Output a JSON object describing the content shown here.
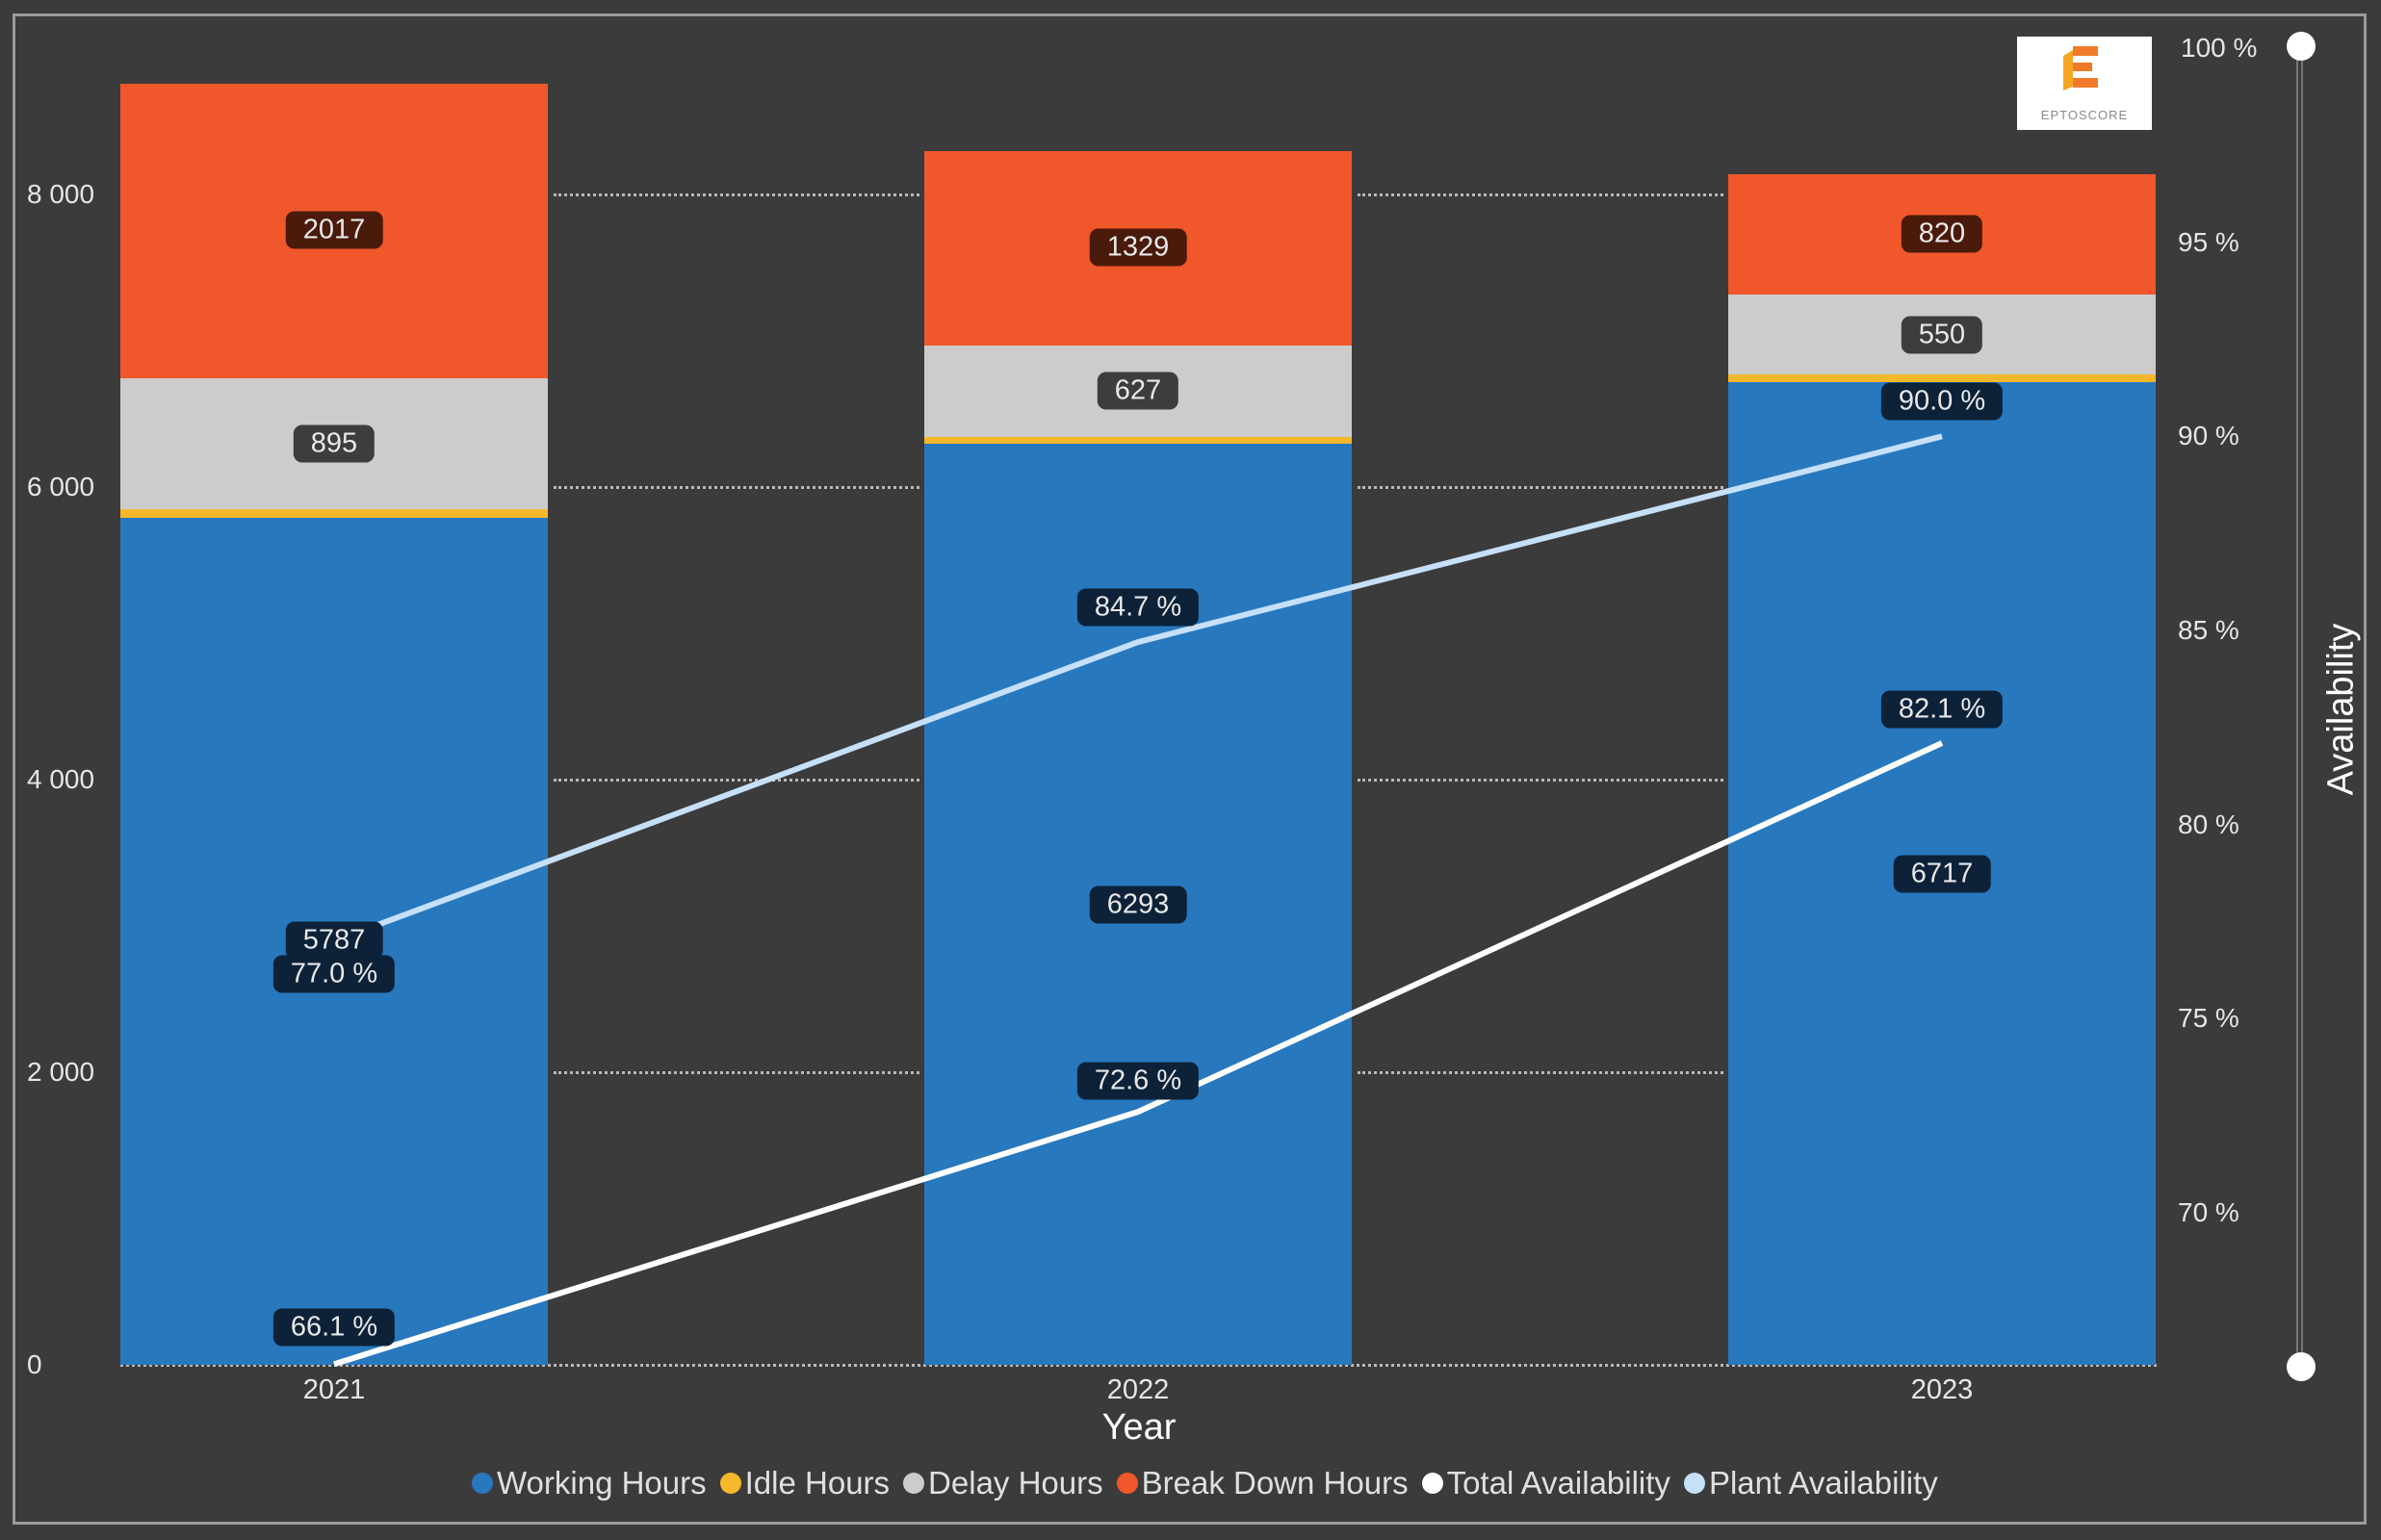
{
  "chart_data": {
    "type": "bar",
    "subtype": "stacked column with line (dual axis)",
    "title": "",
    "xlabel": "Year",
    "ylabel": "",
    "y2label": "Availability",
    "categories": [
      "2021",
      "2022",
      "2023"
    ],
    "ylim": [
      0,
      8800
    ],
    "y_ticks": [
      "0",
      "2 000",
      "4 000",
      "6 000",
      "8 000"
    ],
    "y2lim": [
      66.1,
      100
    ],
    "y2_ticks": [
      "70 %",
      "75 %",
      "80 %",
      "85 %",
      "90 %",
      "95 %",
      "100 %"
    ],
    "grid": true,
    "legend_position": "bottom",
    "series": [
      {
        "name": "Working Hours",
        "type": "bar",
        "color": "#2878be",
        "values": [
          5787,
          6293,
          6717
        ],
        "labels": [
          "5787",
          "6293",
          "6717"
        ]
      },
      {
        "name": "Idle Hours",
        "type": "bar",
        "color": "#f5b82a",
        "values": [
          60,
          50,
          50
        ],
        "labels": [
          "",
          "",
          ""
        ]
      },
      {
        "name": "Delay Hours",
        "type": "bar",
        "color": "#cccccc",
        "values": [
          895,
          627,
          550
        ],
        "labels": [
          "895",
          "627",
          "550"
        ]
      },
      {
        "name": "Break Down Hours",
        "type": "bar",
        "color": "#f0572a",
        "values": [
          2017,
          1329,
          820
        ],
        "labels": [
          "2017",
          "1329",
          "820"
        ]
      },
      {
        "name": "Total Availability",
        "type": "line",
        "axis": "y2",
        "color": "#ffffff",
        "values": [
          66.1,
          72.6,
          82.1
        ],
        "labels": [
          "66.1 %",
          "72.6 %",
          "82.1 %"
        ]
      },
      {
        "name": "Plant Availability",
        "type": "line",
        "axis": "y2",
        "color": "#c5e0f8",
        "values": [
          77.0,
          84.7,
          90.0
        ],
        "labels": [
          "77.0 %",
          "84.7 %",
          "90.0 %"
        ]
      }
    ]
  },
  "axes": {
    "x_title": "Year",
    "x_ticks": [
      "2021",
      "2022",
      "2023"
    ],
    "y_ticks": [
      "0",
      "2 000",
      "4 000",
      "6 000",
      "8 000"
    ],
    "y2_title": "Availability",
    "y2_ticks": [
      "70 %",
      "75 %",
      "80 %",
      "85 %",
      "90 %",
      "95 %",
      "100 %"
    ]
  },
  "legend": [
    {
      "label": "Working Hours",
      "color": "#2878be"
    },
    {
      "label": "Idle Hours",
      "color": "#f5b82a"
    },
    {
      "label": "Delay Hours",
      "color": "#cccccc"
    },
    {
      "label": "Break Down Hours",
      "color": "#f0572a"
    },
    {
      "label": "Total Availability",
      "color": "#ffffff"
    },
    {
      "label": "Plant Availability",
      "color": "#c5e0f8"
    }
  ],
  "logo": {
    "text": "EPTOSCORE"
  }
}
